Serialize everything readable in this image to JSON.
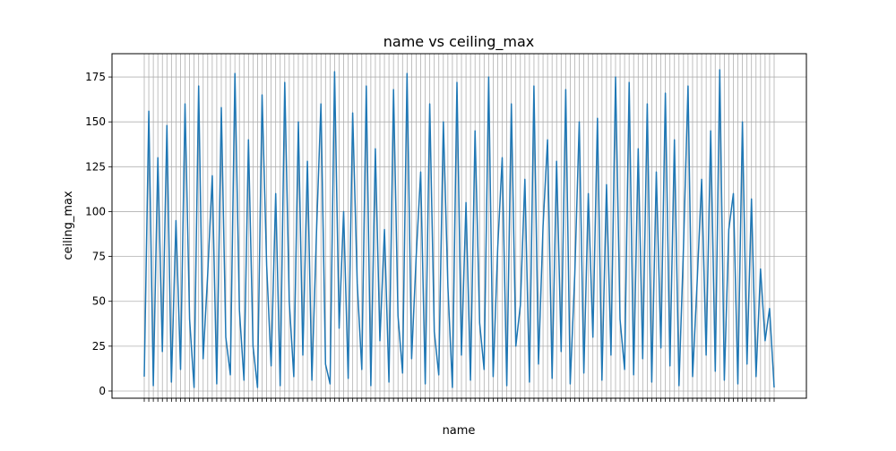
{
  "chart_data": {
    "type": "line",
    "title": "name vs ceiling_max",
    "xlabel": "name",
    "ylabel": "ceiling_max",
    "ylim": [
      -4,
      188
    ],
    "yticks": [
      0,
      25,
      50,
      75,
      100,
      125,
      150,
      175
    ],
    "ytick_labels": [
      "0",
      "25",
      "50",
      "75",
      "100",
      "125",
      "150",
      "175"
    ],
    "grid": true,
    "legend": "none",
    "x_category_count": 140,
    "line_color": "#1f77b4",
    "grid_color": "#b0b0b0",
    "series": [
      {
        "values": [
          8,
          156,
          3,
          130,
          22,
          148,
          5,
          95,
          12,
          160,
          40,
          2,
          170,
          18,
          65,
          120,
          4,
          158,
          30,
          9,
          177,
          45,
          6,
          140,
          25,
          2,
          165,
          70,
          14,
          110,
          3,
          172,
          50,
          8,
          150,
          20,
          128,
          6,
          88,
          160,
          15,
          4,
          178,
          35,
          100,
          7,
          155,
          60,
          12,
          170,
          3,
          135,
          28,
          90,
          5,
          168,
          42,
          10,
          177,
          18,
          75,
          122,
          4,
          160,
          33,
          9,
          150,
          58,
          2,
          172,
          20,
          105,
          6,
          145,
          38,
          12,
          175,
          8,
          80,
          130,
          3,
          160,
          25,
          48,
          118,
          5,
          170,
          15,
          92,
          140,
          7,
          128,
          22,
          168,
          4,
          65,
          150,
          10,
          110,
          30,
          152,
          6,
          115,
          20,
          175,
          40,
          12,
          172,
          9,
          135,
          18,
          160,
          5,
          122,
          24,
          166,
          14,
          140,
          3,
          80,
          170,
          8,
          60,
          118,
          20,
          145,
          11,
          179,
          6,
          90,
          110,
          4,
          150,
          15,
          107,
          8,
          68,
          28,
          46,
          2
        ]
      }
    ]
  }
}
